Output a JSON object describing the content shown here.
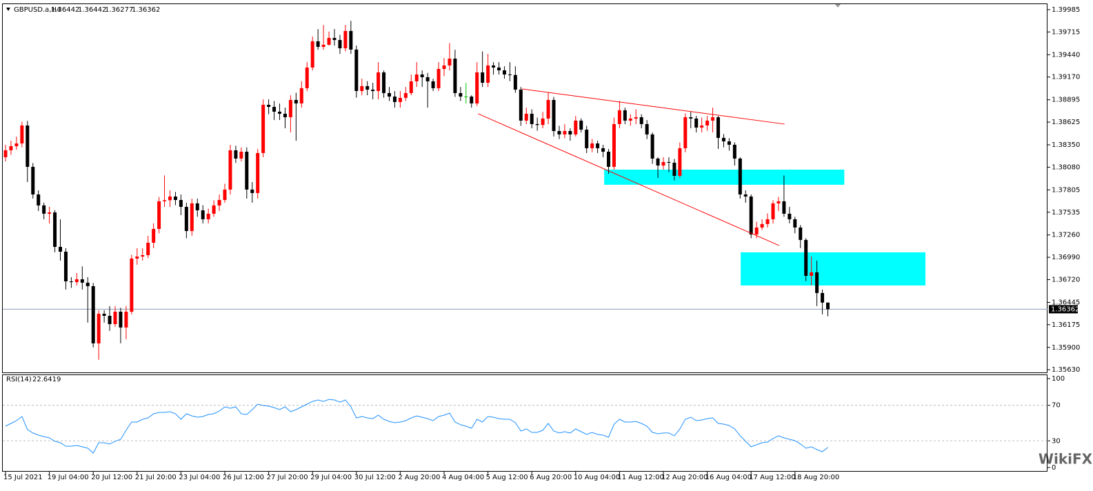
{
  "chart_data": {
    "type": "candlestick",
    "title": "GBPUSD.a,H4",
    "colors": {
      "bull": "#ff0000",
      "bear": "#000000",
      "doji": "#00c000"
    },
    "candles": [
      [
        1.382,
        1.3835,
        1.3815,
        1.38284
      ],
      [
        1.38284,
        1.384,
        1.3823,
        1.38334
      ],
      [
        1.38334,
        1.3845,
        1.3829,
        1.38367
      ],
      [
        1.38367,
        1.3863,
        1.3832,
        1.38584
      ],
      [
        1.38584,
        1.3864,
        1.379,
        1.38084
      ],
      [
        1.38084,
        1.3813,
        1.377,
        1.3775
      ],
      [
        1.3775,
        1.378,
        1.3755,
        1.37617
      ],
      [
        1.37617,
        1.3765,
        1.3745,
        1.37517
      ],
      [
        1.37517,
        1.376,
        1.374,
        1.37533
      ],
      [
        1.37533,
        1.3756,
        1.3705,
        1.37116
      ],
      [
        1.37116,
        1.3745,
        1.3695,
        1.37058
      ],
      [
        1.37058,
        1.371,
        1.366,
        1.36699
      ],
      [
        1.36699,
        1.3675,
        1.3662,
        1.3669
      ],
      [
        1.3669,
        1.368,
        1.3665,
        1.36724
      ],
      [
        1.36724,
        1.3688,
        1.366,
        1.36683
      ],
      [
        1.36683,
        1.3675,
        1.362,
        1.36641
      ],
      [
        1.36641,
        1.3668,
        1.359,
        1.35949
      ],
      [
        1.35949,
        1.3635,
        1.3575,
        1.36307
      ],
      [
        1.36307,
        1.3635,
        1.362,
        1.36282
      ],
      [
        1.36282,
        1.364,
        1.361,
        1.36182
      ],
      [
        1.36182,
        1.364,
        1.3615,
        1.36332
      ],
      [
        1.36332,
        1.3638,
        1.3595,
        1.36141
      ],
      [
        1.36141,
        1.364,
        1.36,
        1.36332
      ],
      [
        1.36332,
        1.3702,
        1.363,
        1.36975
      ],
      [
        1.36975,
        1.371,
        1.369,
        1.36999
      ],
      [
        1.36999,
        1.371,
        1.3695,
        1.37016
      ],
      [
        1.37016,
        1.3725,
        1.3698,
        1.37166
      ],
      [
        1.37166,
        1.374,
        1.371,
        1.37333
      ],
      [
        1.37333,
        1.3772,
        1.3728,
        1.37667
      ],
      [
        1.37667,
        1.3798,
        1.376,
        1.3768
      ],
      [
        1.3768,
        1.378,
        1.376,
        1.37725
      ],
      [
        1.37725,
        1.3778,
        1.3762,
        1.37683
      ],
      [
        1.37683,
        1.3775,
        1.375,
        1.376
      ],
      [
        1.376,
        1.3765,
        1.3722,
        1.37308
      ],
      [
        1.37308,
        1.377,
        1.3725,
        1.37642
      ],
      [
        1.37642,
        1.377,
        1.3748,
        1.37558
      ],
      [
        1.37558,
        1.3762,
        1.374,
        1.3745
      ],
      [
        1.3745,
        1.3758,
        1.374,
        1.37517
      ],
      [
        1.37517,
        1.3768,
        1.3748,
        1.37617
      ],
      [
        1.37617,
        1.3775,
        1.3755,
        1.37683
      ],
      [
        1.37683,
        1.3788,
        1.3765,
        1.37809
      ],
      [
        1.37809,
        1.3835,
        1.3775,
        1.38284
      ],
      [
        1.38284,
        1.3834,
        1.3813,
        1.38184
      ],
      [
        1.38184,
        1.3832,
        1.3815,
        1.38267
      ],
      [
        1.38267,
        1.3832,
        1.377,
        1.37809
      ],
      [
        1.37809,
        1.379,
        1.3765,
        1.37767
      ],
      [
        1.37767,
        1.383,
        1.377,
        1.38251
      ],
      [
        1.38251,
        1.389,
        1.382,
        1.38834
      ],
      [
        1.38834,
        1.389,
        1.3872,
        1.38809
      ],
      [
        1.38809,
        1.3888,
        1.3865,
        1.38751
      ],
      [
        1.38751,
        1.3885,
        1.3865,
        1.38726
      ],
      [
        1.38726,
        1.388,
        1.3855,
        1.38684
      ],
      [
        1.38684,
        1.3895,
        1.385,
        1.38893
      ],
      [
        1.38893,
        1.3898,
        1.384,
        1.38851
      ],
      [
        1.38851,
        1.3912,
        1.388,
        1.39035
      ],
      [
        1.39035,
        1.3935,
        1.39,
        1.39285
      ],
      [
        1.39285,
        1.3966,
        1.3925,
        1.39602
      ],
      [
        1.39602,
        1.3975,
        1.395,
        1.39535
      ],
      [
        1.39535,
        1.398,
        1.395,
        1.3956
      ],
      [
        1.3956,
        1.3972,
        1.3955,
        1.39643
      ],
      [
        1.39643,
        1.3975,
        1.3955,
        1.39618
      ],
      [
        1.39618,
        1.3968,
        1.3945,
        1.39518
      ],
      [
        1.39518,
        1.398,
        1.3948,
        1.39727
      ],
      [
        1.39727,
        1.3985,
        1.3945,
        1.39502
      ],
      [
        1.39502,
        1.3955,
        1.3892,
        1.39001
      ],
      [
        1.39001,
        1.3915,
        1.3895,
        1.3906
      ],
      [
        1.3906,
        1.3912,
        1.3895,
        1.39018
      ],
      [
        1.39018,
        1.391,
        1.389,
        1.39001
      ],
      [
        1.39001,
        1.3935,
        1.389,
        1.39226
      ],
      [
        1.39226,
        1.3925,
        1.3892,
        1.38976
      ],
      [
        1.38976,
        1.3905,
        1.3888,
        1.38934
      ],
      [
        1.38934,
        1.39,
        1.388,
        1.38868
      ],
      [
        1.38868,
        1.39,
        1.388,
        1.38918
      ],
      [
        1.38918,
        1.3905,
        1.3888,
        1.38976
      ],
      [
        1.38976,
        1.392,
        1.3895,
        1.39118
      ],
      [
        1.39118,
        1.3935,
        1.3905,
        1.39201
      ],
      [
        1.39201,
        1.3925,
        1.3905,
        1.39168
      ],
      [
        1.39168,
        1.3922,
        1.388,
        1.39118
      ],
      [
        1.39118,
        1.3915,
        1.39,
        1.39035
      ],
      [
        1.39035,
        1.3935,
        1.39,
        1.39268
      ],
      [
        1.39268,
        1.394,
        1.3918,
        1.3931
      ],
      [
        1.3931,
        1.3958,
        1.3925,
        1.39393
      ],
      [
        1.39393,
        1.395,
        1.3893,
        1.38976
      ],
      [
        1.38976,
        1.3905,
        1.3888,
        1.38934
      ],
      [
        1.38934,
        1.391,
        1.3885,
        1.38934
      ],
      [
        1.38934,
        1.3895,
        1.388,
        1.38851
      ],
      [
        1.38851,
        1.3935,
        1.3882,
        1.39226
      ],
      [
        1.39226,
        1.3948,
        1.3905,
        1.39101
      ],
      [
        1.39101,
        1.3945,
        1.3905,
        1.3931
      ],
      [
        1.3931,
        1.3935,
        1.392,
        1.39285
      ],
      [
        1.39285,
        1.3935,
        1.392,
        1.39251
      ],
      [
        1.39251,
        1.393,
        1.3915,
        1.39201
      ],
      [
        1.39201,
        1.3935,
        1.3912,
        1.39195
      ],
      [
        1.39195,
        1.393,
        1.3898,
        1.39018
      ],
      [
        1.39018,
        1.3905,
        1.3858,
        1.38643
      ],
      [
        1.38643,
        1.388,
        1.386,
        1.38726
      ],
      [
        1.38726,
        1.3878,
        1.3855,
        1.38601
      ],
      [
        1.38601,
        1.3868,
        1.3852,
        1.3859
      ],
      [
        1.3859,
        1.3875,
        1.3855,
        1.38668
      ],
      [
        1.38668,
        1.3898,
        1.386,
        1.38893
      ],
      [
        1.38893,
        1.3893,
        1.3845,
        1.38517
      ],
      [
        1.38517,
        1.3858,
        1.3842,
        1.38476
      ],
      [
        1.38476,
        1.386,
        1.3843,
        1.38517
      ],
      [
        1.38517,
        1.3855,
        1.384,
        1.38476
      ],
      [
        1.38476,
        1.387,
        1.3845,
        1.38643
      ],
      [
        1.38643,
        1.3867,
        1.385,
        1.38534
      ],
      [
        1.38534,
        1.3858,
        1.3825,
        1.38309
      ],
      [
        1.38309,
        1.3842,
        1.3826,
        1.38367
      ],
      [
        1.38367,
        1.384,
        1.3825,
        1.38309
      ],
      [
        1.38309,
        1.3835,
        1.382,
        1.38267
      ],
      [
        1.38267,
        1.383,
        1.38,
        1.38084
      ],
      [
        1.38084,
        1.3868,
        1.3805,
        1.38601
      ],
      [
        1.38601,
        1.3888,
        1.3855,
        1.38768
      ],
      [
        1.38768,
        1.388,
        1.386,
        1.38643
      ],
      [
        1.38643,
        1.3872,
        1.3858,
        1.38668
      ],
      [
        1.38668,
        1.3878,
        1.386,
        1.38684
      ],
      [
        1.38684,
        1.3872,
        1.3855,
        1.38601
      ],
      [
        1.38601,
        1.3865,
        1.3842,
        1.38476
      ],
      [
        1.38476,
        1.385,
        1.3812,
        1.38184
      ],
      [
        1.38184,
        1.382,
        1.3795,
        1.381
      ],
      [
        1.381,
        1.382,
        1.3805,
        1.38142
      ],
      [
        1.38142,
        1.382,
        1.3802,
        1.38134
      ],
      [
        1.38134,
        1.3818,
        1.3792,
        1.37975
      ],
      [
        1.37975,
        1.3838,
        1.3795,
        1.38309
      ],
      [
        1.38309,
        1.3873,
        1.3826,
        1.38684
      ],
      [
        1.38684,
        1.3875,
        1.3855,
        1.38668
      ],
      [
        1.38668,
        1.387,
        1.385,
        1.38559
      ],
      [
        1.38559,
        1.3868,
        1.385,
        1.38584
      ],
      [
        1.38584,
        1.387,
        1.3852,
        1.38643
      ],
      [
        1.38643,
        1.388,
        1.385,
        1.38684
      ],
      [
        1.38684,
        1.387,
        1.383,
        1.38434
      ],
      [
        1.38434,
        1.3848,
        1.3832,
        1.38392
      ],
      [
        1.38392,
        1.3843,
        1.3828,
        1.38351
      ],
      [
        1.38351,
        1.3838,
        1.381,
        1.38184
      ],
      [
        1.38184,
        1.382,
        1.377,
        1.3775
      ],
      [
        1.3775,
        1.378,
        1.3765,
        1.37725
      ],
      [
        1.37725,
        1.3775,
        1.3722,
        1.37266
      ],
      [
        1.37266,
        1.3742,
        1.3722,
        1.3735
      ],
      [
        1.3735,
        1.3745,
        1.3732,
        1.37392
      ],
      [
        1.37392,
        1.3752,
        1.3735,
        1.3745
      ],
      [
        1.3745,
        1.3768,
        1.374,
        1.37642
      ],
      [
        1.37642,
        1.3772,
        1.3755,
        1.37667
      ],
      [
        1.37667,
        1.3798,
        1.3748,
        1.37517
      ],
      [
        1.37517,
        1.376,
        1.374,
        1.3745
      ],
      [
        1.3745,
        1.3748,
        1.3728,
        1.3735
      ],
      [
        1.3735,
        1.3738,
        1.371,
        1.372
      ],
      [
        1.372,
        1.3722,
        1.367,
        1.36766
      ],
      [
        1.36766,
        1.37,
        1.3665,
        1.36808
      ],
      [
        1.36808,
        1.3695,
        1.364,
        1.36558
      ],
      [
        1.36558,
        1.366,
        1.363,
        1.36442
      ],
      [
        1.36442,
        1.36442,
        1.36277,
        1.36362
      ]
    ],
    "ylim": [
      1.35598,
      1.4006
    ],
    "yticks": [
      1.39985,
      1.39715,
      {
        "value": 1.3944,
        "label": "1.39440"
      },
      {
        "value": 1.3917,
        "label": "1.39170"
      },
      1.38895,
      1.38625,
      {
        "value": 1.3835,
        "label": "1.38350"
      },
      {
        "value": 1.3808,
        "label": "1.38080"
      },
      1.37805,
      1.37535,
      {
        "value": 1.3726,
        "label": "1.37260"
      },
      {
        "value": 1.3699,
        "label": "1.36990"
      },
      {
        "value": 1.3672,
        "label": "1.36720"
      },
      1.36445,
      1.36175,
      {
        "value": 1.359,
        "label": "1.35900"
      },
      {
        "value": 1.3563,
        "label": "1.35630"
      }
    ],
    "xticks": [
      {
        "value": 0,
        "label": "15 Jul 2021"
      },
      {
        "value": 8,
        "label": "19 Jul 04:00"
      },
      {
        "value": 16,
        "label": "20 Jul 12:00"
      },
      {
        "value": 24,
        "label": "21 Jul 20:00"
      },
      {
        "value": 32,
        "label": "23 Jul 04:00"
      },
      {
        "value": 40,
        "label": "26 Jul 12:00"
      },
      {
        "value": 48,
        "label": "27 Jul 20:00"
      },
      {
        "value": 56,
        "label": "29 Jul 04:00"
      },
      {
        "value": 64,
        "label": "30 Jul 12:00"
      },
      {
        "value": 72,
        "label": "2 Aug 20:00"
      },
      {
        "value": 80,
        "label": "4 Aug 04:00"
      },
      {
        "value": 88,
        "label": "5 Aug 12:00"
      },
      {
        "value": 96,
        "label": "6 Aug 20:00"
      },
      {
        "value": 104,
        "label": "10 Aug 04:00"
      },
      {
        "value": 112,
        "label": "11 Aug 12:00"
      },
      {
        "value": 120,
        "label": "12 Aug 20:00"
      },
      {
        "value": 128,
        "label": "16 Aug 04:00"
      },
      {
        "value": 136,
        "label": "17 Aug 12:00"
      },
      {
        "value": 144,
        "label": "18 Aug 20:00"
      }
    ],
    "trendlines": [
      {
        "color": "#ff0000",
        "from": [
          94.2,
          1.39026
        ],
        "to": [
          142.1,
          1.38601
        ]
      },
      {
        "color": "#ff0000",
        "from": [
          86.2,
          1.38726
        ],
        "to": [
          141.1,
          1.37133
        ]
      }
    ],
    "zones": [
      {
        "color": "#00ffff",
        "x": [
          109.2,
          153
        ],
        "y": [
          1.37867,
          1.3805
        ]
      },
      {
        "color": "#00ffff",
        "x": [
          134.1,
          167.8
        ],
        "y": [
          1.36649,
          1.3705
        ]
      }
    ],
    "price_line_color": "#8c9bb0",
    "rsi": {
      "name": "RSI(14)",
      "color": "#1e90ff",
      "ylim": [
        -4.7,
        104.7
      ],
      "yticks": [
        100,
        70,
        30,
        0
      ],
      "levels": [
        70,
        30
      ],
      "values": [
        46.5,
        49.6,
        52.7,
        57.4,
        42.6,
        38.8,
        36.4,
        34.9,
        33.3,
        29.5,
        27.9,
        24.0,
        24.0,
        24.8,
        23.3,
        21.7,
        16.3,
        27.9,
        27.9,
        26.4,
        29.5,
        31.8,
        41.9,
        51.2,
        51.2,
        54.3,
        55.8,
        60.5,
        62.0,
        62.0,
        62.8,
        60.5,
        54.3,
        60.5,
        58.1,
        56.6,
        57.4,
        59.7,
        60.5,
        63.6,
        68.2,
        66.7,
        68.2,
        60.5,
        59.7,
        65.1,
        71.3,
        69.8,
        69.0,
        67.4,
        65.1,
        68.2,
        62.8,
        65.1,
        68.2,
        71.3,
        74.4,
        76.0,
        74.4,
        76.7,
        76.0,
        73.6,
        76.0,
        68.2,
        55.8,
        57.4,
        55.8,
        55.0,
        58.9,
        54.3,
        51.9,
        50.4,
        51.2,
        52.7,
        55.8,
        58.1,
        56.6,
        55.0,
        52.7,
        57.4,
        58.9,
        61.2,
        51.2,
        48.1,
        46.5,
        44.2,
        54.3,
        51.2,
        57.4,
        56.6,
        55.0,
        54.3,
        54.3,
        50.4,
        41.1,
        43.4,
        39.5,
        39.5,
        41.9,
        49.6,
        41.1,
        38.8,
        40.3,
        38.8,
        43.4,
        40.3,
        37.2,
        39.5,
        37.2,
        36.4,
        34.1,
        48.8,
        54.3,
        51.2,
        51.2,
        51.9,
        49.6,
        46.5,
        39.5,
        38.0,
        38.8,
        38.8,
        35.7,
        43.4,
        54.3,
        56.6,
        52.7,
        53.5,
        55.0,
        55.8,
        49.6,
        48.8,
        47.3,
        43.4,
        35.7,
        29.5,
        23.3,
        25.6,
        27.9,
        28.7,
        32.6,
        35.7,
        33.3,
        31.8,
        30.2,
        26.4,
        21.7,
        23.3,
        20.2,
        17.8,
        22.6419
      ]
    },
    "watermark": "WikiFX"
  }
}
